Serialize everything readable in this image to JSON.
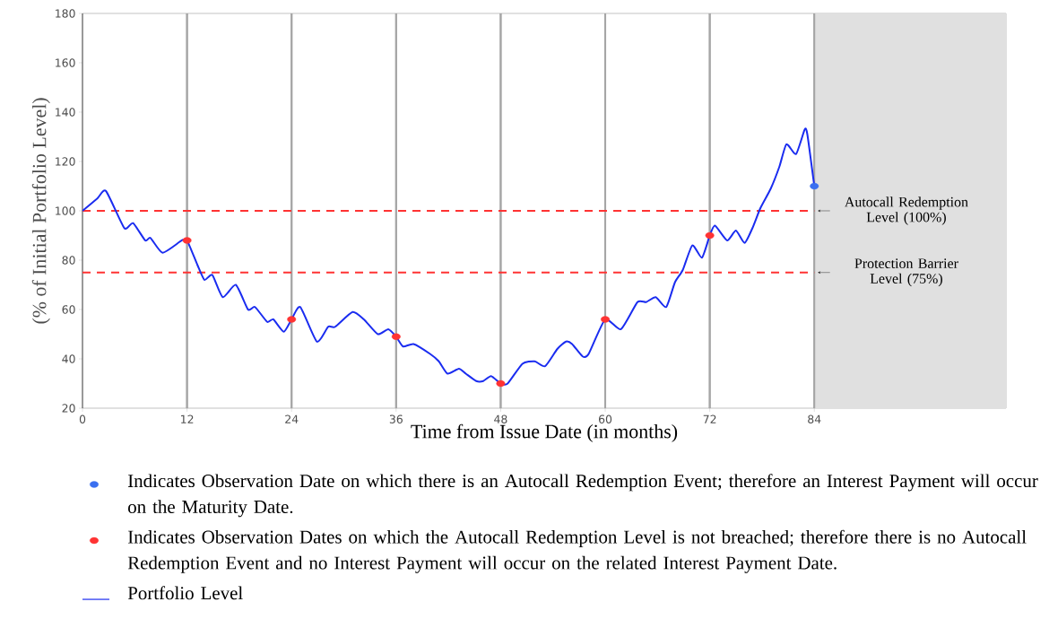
{
  "chart_data": {
    "type": "line",
    "xlabel": "Time from Issue Date (in months)",
    "ylabel": "(% of Initial Portfolio Level)",
    "xlim": [
      0,
      106
    ],
    "ylim": [
      20,
      180
    ],
    "xticks": [
      0,
      12,
      24,
      36,
      48,
      60,
      72,
      84
    ],
    "yticks": [
      20,
      40,
      60,
      80,
      100,
      120,
      140,
      160,
      180
    ],
    "grid": "x",
    "legend": "bottom",
    "series": [
      {
        "name": "Portfolio Level",
        "color": "#1a2cf0",
        "x": [
          0,
          1.7,
          2.7,
          4.8,
          5.8,
          7.2,
          7.8,
          9.2,
          11.4,
          12,
          13.2,
          14,
          14.9,
          16.1,
          17.6,
          19,
          19.8,
          21.2,
          21.9,
          23.1,
          24,
          25,
          26.9,
          28.2,
          29,
          31,
          32.3,
          33.9,
          35.1,
          36,
          36.8,
          38,
          39.9,
          40.9,
          41.9,
          43.2,
          44,
          45.2,
          46,
          46.9,
          48,
          48.8,
          50.5,
          51.9,
          53.1,
          54.5,
          55.5,
          56.2,
          57.4,
          58.1,
          60,
          61.8,
          63.7,
          64.7,
          65.8,
          67,
          68,
          68.9,
          70,
          71.1,
          72,
          72.6,
          74,
          75,
          76,
          76.9,
          77.8,
          79,
          80,
          80.8,
          81.9,
          82.9,
          83.2,
          84
        ],
        "values": [
          100,
          105,
          108,
          93,
          95,
          88,
          89,
          83,
          88,
          88,
          78,
          72,
          74,
          65,
          70,
          60,
          61,
          55,
          56,
          51,
          56,
          61,
          47,
          53,
          53,
          59,
          56,
          50,
          52,
          49,
          45,
          46,
          42,
          39,
          34,
          36,
          34,
          31,
          31,
          33,
          30,
          30,
          38,
          39,
          37,
          44,
          47,
          46,
          41,
          42,
          56,
          52,
          63,
          63,
          65,
          61,
          71,
          76,
          86,
          81,
          90,
          94,
          88,
          92,
          87,
          93,
          101,
          109,
          118,
          127,
          123,
          133,
          131,
          110
        ]
      },
      {
        "name": "Indicates Observation Dates on which the Autocall Redemption Level is not breached; therefore there is no Autocall Redemption Event and no Interest Payment will occur on the related Interest Payment Date.",
        "type": "scatter",
        "color": "#ff3333",
        "marker": "circle",
        "x": [
          12,
          24,
          36,
          48,
          60,
          72
        ],
        "values": [
          88,
          56,
          49,
          30,
          56,
          90
        ]
      },
      {
        "name": "Indicates Observation Date on which there is an Autocall Redemption Event; therefore an Interest Payment will occur on the Maturity Date.",
        "type": "scatter",
        "color": "#3a6ff0",
        "marker": "circle",
        "x": [
          84
        ],
        "values": [
          110
        ]
      }
    ],
    "ref_lines": [
      {
        "axis": "y",
        "value": 100,
        "label": "Autocall Redemption Level (100%)",
        "color": "#ff3333",
        "line_style": "dashed"
      },
      {
        "axis": "y",
        "value": 75,
        "label": "Protection Barrier Level (75%)",
        "color": "#ff3333",
        "line_style": "dashed"
      }
    ],
    "bands": [
      {
        "axis": "x",
        "from": 84,
        "to": 106,
        "color": "#e0e0e0"
      }
    ]
  }
}
